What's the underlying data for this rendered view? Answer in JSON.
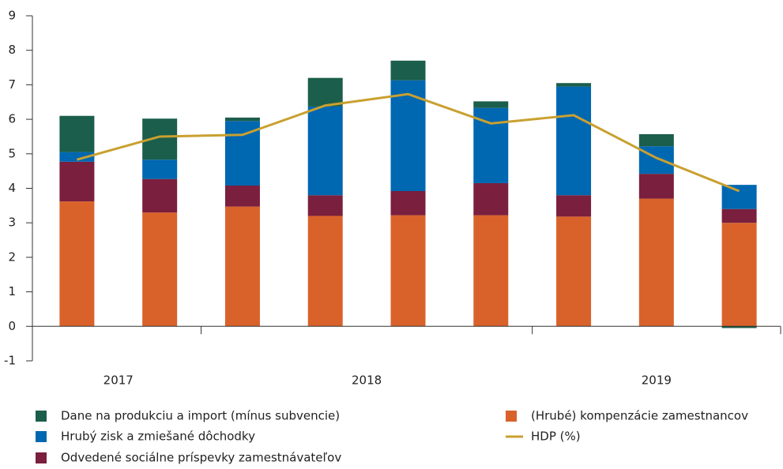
{
  "chart_data": {
    "type": "bar",
    "stacked": true,
    "categories": [
      null,
      null,
      null,
      null,
      null,
      null,
      null,
      null,
      null
    ],
    "groups": [
      {
        "label": "2017",
        "count": 2
      },
      {
        "label": "2018",
        "count": 4
      },
      {
        "label": "2019",
        "count": 3
      }
    ],
    "series": [
      {
        "name": "Dane na produkciu a import (mínus subvencie)",
        "color": "#1b5e4b",
        "values": [
          1.05,
          1.19,
          0.1,
          0.83,
          0.57,
          0.19,
          0.1,
          0.35,
          -0.05
        ]
      },
      {
        "name": "Hrubý zisk a zmiešané dôchodky",
        "color": "#0067b1",
        "values": [
          0.28,
          0.56,
          1.87,
          2.57,
          3.21,
          2.18,
          3.15,
          0.8,
          0.7
        ]
      },
      {
        "name": "Odvedené sociálne príspevky zamestnávateľov",
        "color": "#7a1f3d",
        "values": [
          1.15,
          0.97,
          0.61,
          0.6,
          0.7,
          0.93,
          0.62,
          0.72,
          0.4
        ]
      },
      {
        "name": "(Hrubé) kompenzácie zamestnancov",
        "color": "#d9622b",
        "values": [
          3.62,
          3.3,
          3.47,
          3.2,
          3.22,
          3.22,
          3.18,
          3.7,
          3.0
        ]
      },
      {
        "name": "HDP (%)",
        "type": "line",
        "color": "#c9a030",
        "values": [
          4.83,
          5.5,
          5.55,
          6.4,
          6.73,
          5.88,
          6.12,
          4.88,
          3.92
        ]
      }
    ],
    "ylim": [
      -1,
      9
    ],
    "yticks": [
      -1,
      0,
      1,
      2,
      3,
      4,
      5,
      6,
      7,
      8,
      9
    ]
  }
}
